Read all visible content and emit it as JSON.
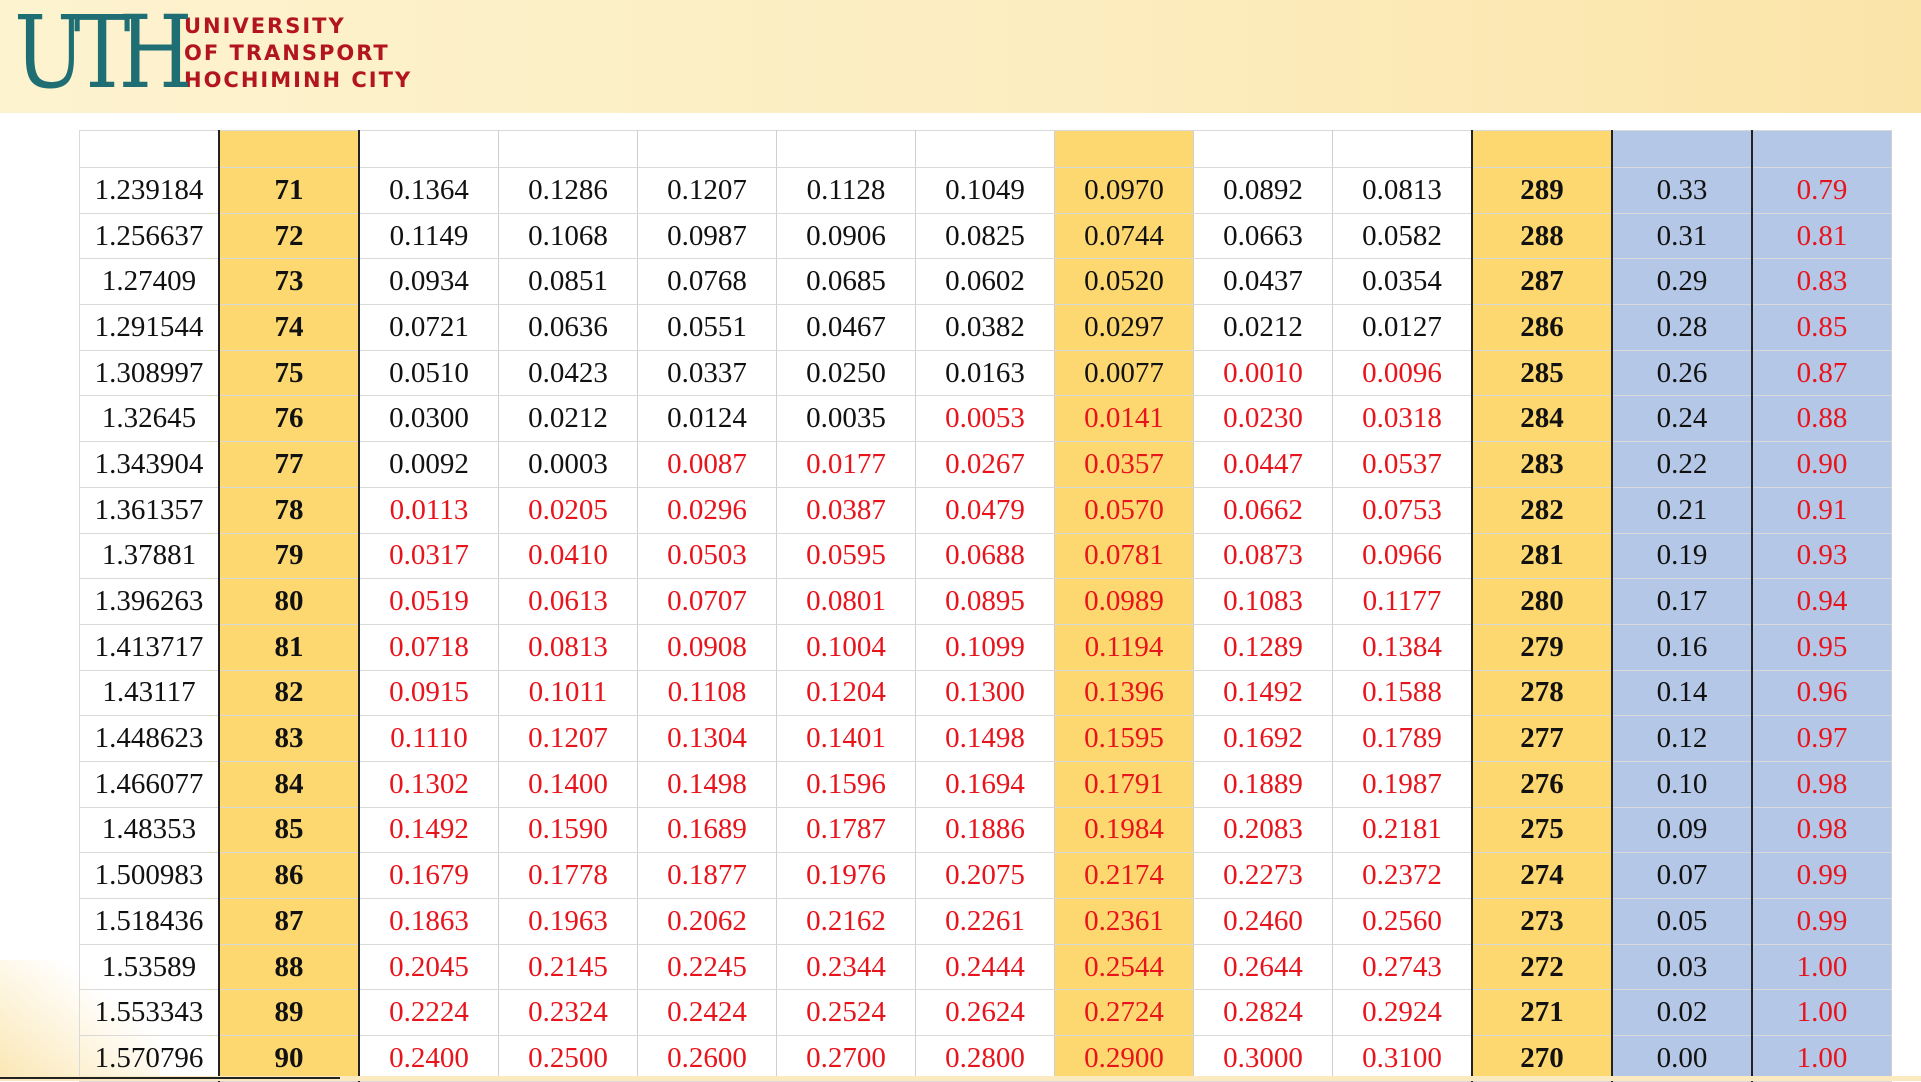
{
  "logo": {
    "mark": "UTH",
    "line1": "UNIVERSITY",
    "line2": "OF TRANSPORT",
    "line3": "HOCHIMINH CITY"
  },
  "rows": [
    {
      "rad": "1.239184",
      "deg": "71",
      "v": [
        "0.1364",
        "0.1286",
        "0.1207",
        "0.1128",
        "0.1049",
        "0.0970",
        "0.0892",
        "0.0813"
      ],
      "neg": [
        0,
        0,
        0,
        0,
        0,
        0,
        0,
        0
      ],
      "deg2": "289",
      "a": "0.33",
      "b": "0.79"
    },
    {
      "rad": "1.256637",
      "deg": "72",
      "v": [
        "0.1149",
        "0.1068",
        "0.0987",
        "0.0906",
        "0.0825",
        "0.0744",
        "0.0663",
        "0.0582"
      ],
      "neg": [
        0,
        0,
        0,
        0,
        0,
        0,
        0,
        0
      ],
      "deg2": "288",
      "a": "0.31",
      "b": "0.81"
    },
    {
      "rad": "1.27409",
      "deg": "73",
      "v": [
        "0.0934",
        "0.0851",
        "0.0768",
        "0.0685",
        "0.0602",
        "0.0520",
        "0.0437",
        "0.0354"
      ],
      "neg": [
        0,
        0,
        0,
        0,
        0,
        0,
        0,
        0
      ],
      "deg2": "287",
      "a": "0.29",
      "b": "0.83"
    },
    {
      "rad": "1.291544",
      "deg": "74",
      "v": [
        "0.0721",
        "0.0636",
        "0.0551",
        "0.0467",
        "0.0382",
        "0.0297",
        "0.0212",
        "0.0127"
      ],
      "neg": [
        0,
        0,
        0,
        0,
        0,
        0,
        0,
        0
      ],
      "deg2": "286",
      "a": "0.28",
      "b": "0.85"
    },
    {
      "rad": "1.308997",
      "deg": "75",
      "v": [
        "0.0510",
        "0.0423",
        "0.0337",
        "0.0250",
        "0.0163",
        "0.0077",
        "0.0010",
        "0.0096"
      ],
      "neg": [
        0,
        0,
        0,
        0,
        0,
        0,
        1,
        1
      ],
      "deg2": "285",
      "a": "0.26",
      "b": "0.87"
    },
    {
      "rad": "1.32645",
      "deg": "76",
      "v": [
        "0.0300",
        "0.0212",
        "0.0124",
        "0.0035",
        "0.0053",
        "0.0141",
        "0.0230",
        "0.0318"
      ],
      "neg": [
        0,
        0,
        0,
        0,
        1,
        1,
        1,
        1
      ],
      "deg2": "284",
      "a": "0.24",
      "b": "0.88"
    },
    {
      "rad": "1.343904",
      "deg": "77",
      "v": [
        "0.0092",
        "0.0003",
        "0.0087",
        "0.0177",
        "0.0267",
        "0.0357",
        "0.0447",
        "0.0537"
      ],
      "neg": [
        0,
        0,
        1,
        1,
        1,
        1,
        1,
        1
      ],
      "deg2": "283",
      "a": "0.22",
      "b": "0.90"
    },
    {
      "rad": "1.361357",
      "deg": "78",
      "v": [
        "0.0113",
        "0.0205",
        "0.0296",
        "0.0387",
        "0.0479",
        "0.0570",
        "0.0662",
        "0.0753"
      ],
      "neg": [
        1,
        1,
        1,
        1,
        1,
        1,
        1,
        1
      ],
      "deg2": "282",
      "a": "0.21",
      "b": "0.91"
    },
    {
      "rad": "1.37881",
      "deg": "79",
      "v": [
        "0.0317",
        "0.0410",
        "0.0503",
        "0.0595",
        "0.0688",
        "0.0781",
        "0.0873",
        "0.0966"
      ],
      "neg": [
        1,
        1,
        1,
        1,
        1,
        1,
        1,
        1
      ],
      "deg2": "281",
      "a": "0.19",
      "b": "0.93"
    },
    {
      "rad": "1.396263",
      "deg": "80",
      "v": [
        "0.0519",
        "0.0613",
        "0.0707",
        "0.0801",
        "0.0895",
        "0.0989",
        "0.1083",
        "0.1177"
      ],
      "neg": [
        1,
        1,
        1,
        1,
        1,
        1,
        1,
        1
      ],
      "deg2": "280",
      "a": "0.17",
      "b": "0.94"
    },
    {
      "rad": "1.413717",
      "deg": "81",
      "v": [
        "0.0718",
        "0.0813",
        "0.0908",
        "0.1004",
        "0.1099",
        "0.1194",
        "0.1289",
        "0.1384"
      ],
      "neg": [
        1,
        1,
        1,
        1,
        1,
        1,
        1,
        1
      ],
      "deg2": "279",
      "a": "0.16",
      "b": "0.95"
    },
    {
      "rad": "1.43117",
      "deg": "82",
      "v": [
        "0.0915",
        "0.1011",
        "0.1108",
        "0.1204",
        "0.1300",
        "0.1396",
        "0.1492",
        "0.1588"
      ],
      "neg": [
        1,
        1,
        1,
        1,
        1,
        1,
        1,
        1
      ],
      "deg2": "278",
      "a": "0.14",
      "b": "0.96"
    },
    {
      "rad": "1.448623",
      "deg": "83",
      "v": [
        "0.1110",
        "0.1207",
        "0.1304",
        "0.1401",
        "0.1498",
        "0.1595",
        "0.1692",
        "0.1789"
      ],
      "neg": [
        1,
        1,
        1,
        1,
        1,
        1,
        1,
        1
      ],
      "deg2": "277",
      "a": "0.12",
      "b": "0.97"
    },
    {
      "rad": "1.466077",
      "deg": "84",
      "v": [
        "0.1302",
        "0.1400",
        "0.1498",
        "0.1596",
        "0.1694",
        "0.1791",
        "0.1889",
        "0.1987"
      ],
      "neg": [
        1,
        1,
        1,
        1,
        1,
        1,
        1,
        1
      ],
      "deg2": "276",
      "a": "0.10",
      "b": "0.98"
    },
    {
      "rad": "1.48353",
      "deg": "85",
      "v": [
        "0.1492",
        "0.1590",
        "0.1689",
        "0.1787",
        "0.1886",
        "0.1984",
        "0.2083",
        "0.2181"
      ],
      "neg": [
        1,
        1,
        1,
        1,
        1,
        1,
        1,
        1
      ],
      "deg2": "275",
      "a": "0.09",
      "b": "0.98"
    },
    {
      "rad": "1.500983",
      "deg": "86",
      "v": [
        "0.1679",
        "0.1778",
        "0.1877",
        "0.1976",
        "0.2075",
        "0.2174",
        "0.2273",
        "0.2372"
      ],
      "neg": [
        1,
        1,
        1,
        1,
        1,
        1,
        1,
        1
      ],
      "deg2": "274",
      "a": "0.07",
      "b": "0.99"
    },
    {
      "rad": "1.518436",
      "deg": "87",
      "v": [
        "0.1863",
        "0.1963",
        "0.2062",
        "0.2162",
        "0.2261",
        "0.2361",
        "0.2460",
        "0.2560"
      ],
      "neg": [
        1,
        1,
        1,
        1,
        1,
        1,
        1,
        1
      ],
      "deg2": "273",
      "a": "0.05",
      "b": "0.99"
    },
    {
      "rad": "1.53589",
      "deg": "88",
      "v": [
        "0.2045",
        "0.2145",
        "0.2245",
        "0.2344",
        "0.2444",
        "0.2544",
        "0.2644",
        "0.2743"
      ],
      "neg": [
        1,
        1,
        1,
        1,
        1,
        1,
        1,
        1
      ],
      "deg2": "272",
      "a": "0.03",
      "b": "1.00"
    },
    {
      "rad": "1.553343",
      "deg": "89",
      "v": [
        "0.2224",
        "0.2324",
        "0.2424",
        "0.2524",
        "0.2624",
        "0.2724",
        "0.2824",
        "0.2924"
      ],
      "neg": [
        1,
        1,
        1,
        1,
        1,
        1,
        1,
        1
      ],
      "deg2": "271",
      "a": "0.02",
      "b": "1.00"
    },
    {
      "rad": "1.570796",
      "deg": "90",
      "v": [
        "0.2400",
        "0.2500",
        "0.2600",
        "0.2700",
        "0.2800",
        "0.2900",
        "0.3000",
        "0.3100"
      ],
      "neg": [
        1,
        1,
        1,
        1,
        1,
        1,
        1,
        1
      ],
      "deg2": "270",
      "a": "0.00",
      "b": "1.00"
    }
  ],
  "colors": {
    "highlight_yellow": "#fdd76f",
    "highlight_blue": "#b4c7e7",
    "negative_text": "#e8141c",
    "logo_teal": "#1e6e74",
    "logo_red": "#b3151f"
  }
}
